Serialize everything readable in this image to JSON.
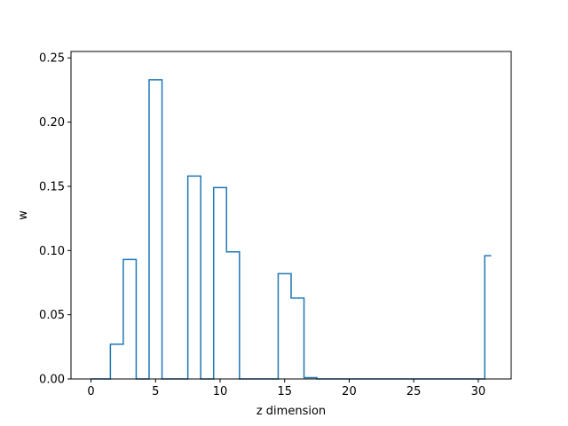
{
  "chart_data": {
    "type": "line",
    "step": "mid",
    "xlabel": "z dimension",
    "ylabel": "w",
    "xlim": [
      -1.55,
      32.55
    ],
    "ylim": [
      0,
      0.255
    ],
    "xticks": [
      0,
      5,
      10,
      15,
      20,
      25,
      30
    ],
    "xtick_labels": [
      "0",
      "5",
      "10",
      "15",
      "20",
      "25",
      "30"
    ],
    "yticks": [
      0,
      0.05,
      0.1,
      0.15,
      0.2,
      0.25
    ],
    "ytick_labels": [
      "0.00",
      "0.05",
      "0.10",
      "0.15",
      "0.20",
      "0.25"
    ],
    "grid": false,
    "color": "#1f77b4",
    "x": [
      0,
      1,
      2,
      3,
      4,
      5,
      6,
      7,
      8,
      9,
      10,
      11,
      12,
      13,
      14,
      15,
      16,
      17,
      18,
      19,
      20,
      21,
      22,
      23,
      24,
      25,
      26,
      27,
      28,
      29,
      30,
      31
    ],
    "y": [
      0,
      0,
      0.027,
      0.093,
      0,
      0.233,
      0,
      0,
      0.158,
      0,
      0.149,
      0.099,
      0,
      0,
      0,
      0.082,
      0.063,
      0.001,
      0,
      0,
      0,
      0,
      0,
      0,
      0,
      0,
      0,
      0,
      0,
      0,
      0,
      0.096
    ]
  }
}
